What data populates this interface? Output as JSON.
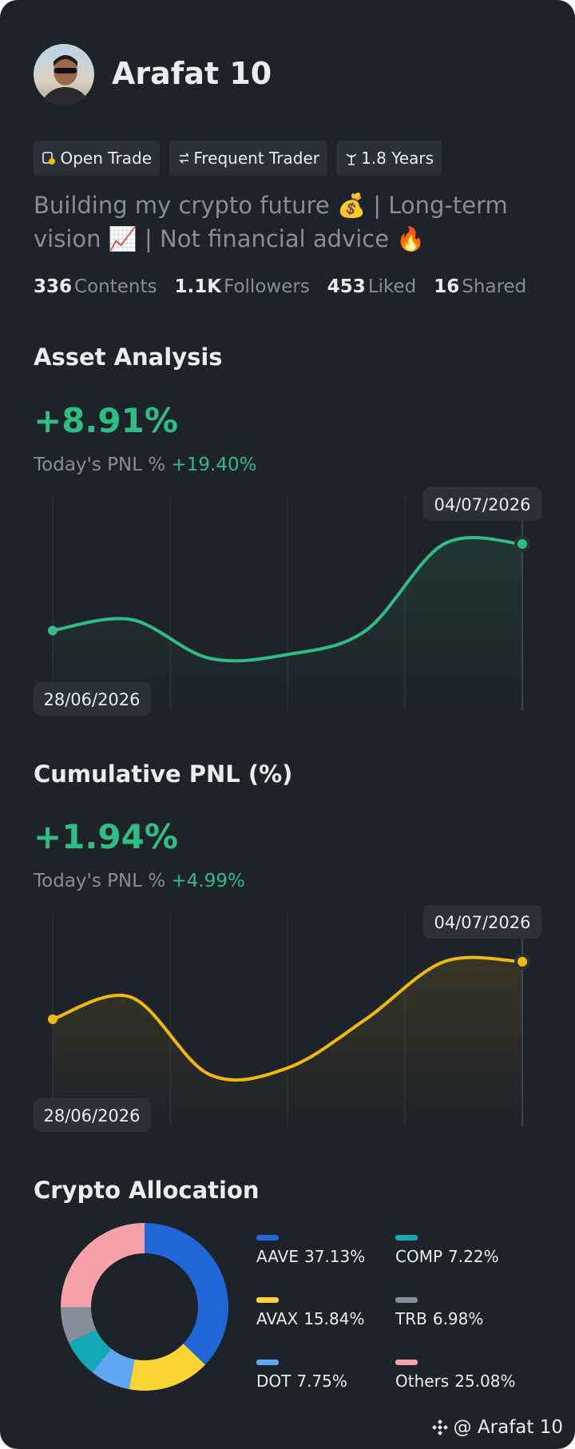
{
  "profile": {
    "name": "Arafat 10",
    "badges": [
      "Open Trade",
      "Frequent Trader",
      "1.8 Years"
    ],
    "bio": [
      "Building my crypto future 💰 | Long-term",
      "vision 📈 | Not financial advice 🔥"
    ],
    "stats": [
      {
        "value": "336",
        "label": "Contents"
      },
      {
        "value": "1.1K",
        "label": "Followers"
      },
      {
        "value": "453",
        "label": "Liked"
      },
      {
        "value": "16",
        "label": "Shared"
      }
    ]
  },
  "asset_analysis": {
    "title": "Asset Analysis",
    "headline": "+8.91%",
    "today_label": "Today's PNL %",
    "today_value": "+19.40%",
    "chart": {
      "type": "line",
      "color": "#2ebd85",
      "values": [
        2.16,
        3.02,
        0,
        0.29,
        2.16,
        8.91,
        8.91
      ],
      "start_date": "28/06/2026",
      "end_date": "04/07/2026"
    }
  },
  "cumulative_pnl": {
    "title": "Cumulative PNL (%)",
    "headline": "+1.94%",
    "today_label": "Today's PNL %",
    "today_value": "+4.99%",
    "chart": {
      "type": "line",
      "color": "#f0b90b",
      "values": [
        0.95,
        1.33,
        0,
        0.11,
        0.95,
        1.94,
        1.94
      ],
      "start_date": "28/06/2026",
      "end_date": "04/07/2026"
    }
  },
  "crypto_allocation": {
    "title": "Crypto Allocation",
    "chart": {
      "type": "donut",
      "categories": [
        "AAVE",
        "AVAX",
        "DOT",
        "COMP",
        "TRB",
        "Others"
      ],
      "values": [
        37.13,
        15.84,
        7.75,
        7.22,
        6.98,
        25.08
      ],
      "value_labels": [
        "37.13%",
        "15.84%",
        "7.75%",
        "7.22%",
        "6.98%",
        "25.08%"
      ],
      "colors": [
        "#2167d8",
        "#fcd535",
        "#5ea8f5",
        "#14a8b5",
        "#848e9c",
        "#f6a0aa"
      ]
    }
  },
  "footer": {
    "handle": "@ Arafat 10"
  }
}
